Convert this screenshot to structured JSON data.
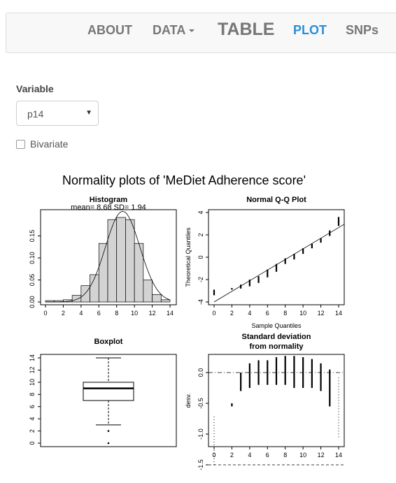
{
  "nav": {
    "about": "ABOUT",
    "data": "DATA",
    "table": "TABLE",
    "plot": "PLOT",
    "snps": "SNPs",
    "active_color": "#2a8fd8"
  },
  "form": {
    "variable_label": "Variable",
    "variable_value": "p14",
    "bivariate_label": "Bivariate",
    "bivariate_checked": false
  },
  "figure_title": "Normality plots of 'MeDiet Adherence score'",
  "chart_data": [
    {
      "type": "bar",
      "title": "Histogram",
      "subtitle": "mean= 8.68  SD= 1.94",
      "xlabel": "",
      "ylabel": "",
      "bin_edges": [
        0,
        1,
        2,
        3,
        4,
        5,
        6,
        7,
        8,
        9,
        10,
        11,
        12,
        13,
        14
      ],
      "values": [
        0.003,
        0.003,
        0.005,
        0.015,
        0.037,
        0.062,
        0.133,
        0.187,
        0.192,
        0.187,
        0.133,
        0.05,
        0.017,
        0.005
      ],
      "normal_curve": {
        "mean": 8.68,
        "sd": 1.94
      },
      "xlim": [
        0,
        14
      ],
      "ylim": [
        0,
        0.2
      ],
      "xticks": [
        0,
        2,
        4,
        6,
        8,
        10,
        12,
        14
      ],
      "yticks": [
        0,
        0.05,
        0.1,
        0.15
      ],
      "ytick_labels": [
        "0.00",
        "0.05",
        "0.10",
        "0.15"
      ]
    },
    {
      "type": "scatter",
      "title": "Normal Q-Q Plot",
      "xlabel": "Sample Quantiles",
      "ylabel": "Theoretical Quantiles",
      "x": [
        0,
        2,
        3,
        4,
        5,
        6,
        7,
        8,
        9,
        10,
        11,
        12,
        13,
        14
      ],
      "y_low": [
        -3.4,
        -2.9,
        -2.8,
        -2.6,
        -2.3,
        -1.8,
        -1.3,
        -0.6,
        -0.2,
        0.3,
        0.8,
        1.3,
        1.9,
        2.8
      ],
      "y_high": [
        -2.9,
        -2.75,
        -2.45,
        -2.0,
        -1.7,
        -1.1,
        -0.6,
        -0.1,
        0.3,
        0.8,
        1.2,
        1.7,
        2.4,
        3.6
      ],
      "reference_line": {
        "y_at_x0": -4.0,
        "y_at_x14": 2.65
      },
      "xlim": [
        0,
        14
      ],
      "ylim": [
        -4,
        4
      ],
      "xticks": [
        0,
        2,
        4,
        6,
        8,
        10,
        12,
        14
      ],
      "yticks": [
        -4,
        -2,
        0,
        2,
        4
      ]
    },
    {
      "type": "box",
      "title": "Boxplot",
      "min": 3,
      "q1": 7,
      "median": 9,
      "q3": 10,
      "max": 14,
      "outliers": [
        0,
        2
      ],
      "ylim": [
        0,
        14
      ],
      "yticks": [
        0,
        2,
        4,
        6,
        8,
        10,
        12,
        14
      ]
    },
    {
      "type": "scatter",
      "title": "Standard deviation",
      "title2": "from normality",
      "ylabel": "desv.",
      "x": [
        0,
        2,
        3,
        4,
        5,
        6,
        7,
        8,
        9,
        10,
        11,
        12,
        13,
        14
      ],
      "y_low": [
        -1.5,
        -0.55,
        -0.3,
        -0.25,
        -0.2,
        -0.2,
        -0.2,
        -0.2,
        -0.25,
        -0.25,
        -0.25,
        -0.3,
        -0.55,
        -1.05
      ],
      "y_high": [
        -0.7,
        -0.5,
        0.0,
        0.15,
        0.2,
        0.2,
        0.25,
        0.27,
        0.27,
        0.25,
        0.22,
        0.15,
        0.05,
        -0.05
      ],
      "hline_dashdot": 0.0,
      "hline_dashed": -1.5,
      "xlim": [
        0,
        14
      ],
      "ylim": [
        -1.6,
        0.4
      ],
      "xticks": [
        0,
        2,
        4,
        6,
        8,
        10,
        12,
        14
      ],
      "yticks": [
        0.0,
        -0.5,
        -1.0,
        -1.5
      ],
      "ytick_labels": [
        "0.0",
        "-0.5",
        "-1.0",
        "-1.5"
      ]
    }
  ]
}
